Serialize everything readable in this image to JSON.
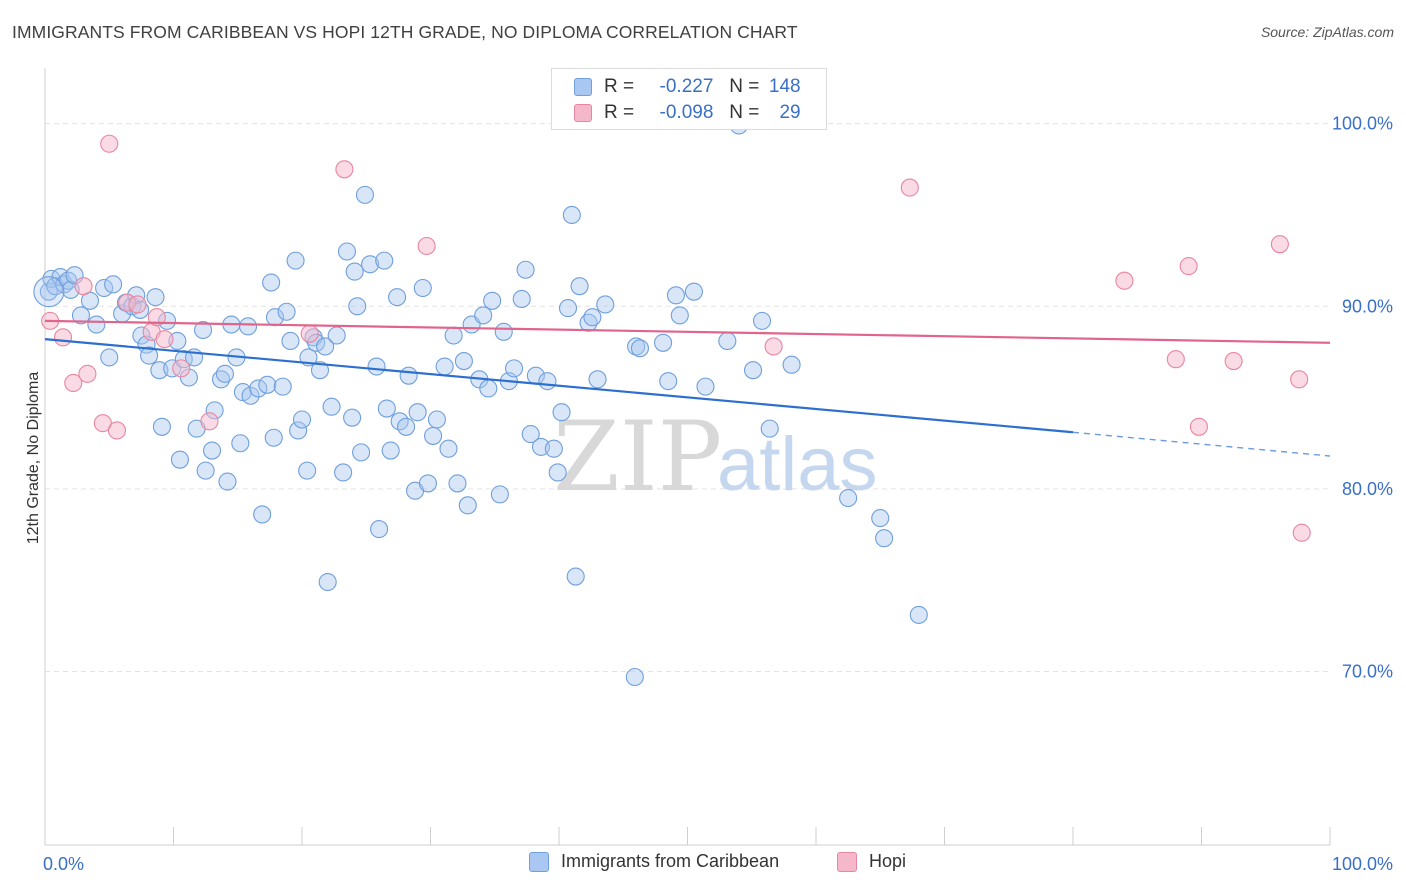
{
  "header": {
    "title": "IMMIGRANTS FROM CARIBBEAN VS HOPI 12TH GRADE, NO DIPLOMA CORRELATION CHART",
    "source": "Source: ZipAtlas.com"
  },
  "stats_legend": {
    "rows": [
      {
        "r_label": "R =",
        "r_value": "-0.227",
        "n_label": "N =",
        "n_value": "148",
        "color": "#a9c7f0"
      },
      {
        "r_label": "R =",
        "r_value": "-0.098",
        "n_label": "N =",
        "n_value": "29",
        "color": "#f5b8cb"
      }
    ]
  },
  "colors": {
    "blue_fill": "#a9c7f0",
    "blue_stroke": "#6f9fdc",
    "blue_line": "#2d6fcf",
    "pink_fill": "#f5b8cb",
    "pink_stroke": "#e8869f",
    "pink_line": "#e0648b",
    "tick_label": "#3a6fc6",
    "grid": "#e3e3e3"
  },
  "watermark": {
    "zip": "ZIP",
    "atlas": "atlas"
  },
  "chart_data": {
    "type": "scatter",
    "title": "IMMIGRANTS FROM CARIBBEAN VS HOPI 12TH GRADE, NO DIPLOMA CORRELATION CHART",
    "xlabel": "",
    "ylabel": "12th Grade, No Diploma",
    "xlim": [
      0,
      100
    ],
    "ylim": [
      60.5,
      102.5
    ],
    "x_tick_labels": [
      "0.0%",
      "100.0%"
    ],
    "y_ticks": [
      70,
      80,
      90,
      100
    ],
    "y_tick_labels": [
      "70.0%",
      "80.0%",
      "90.0%",
      "100.0%"
    ],
    "grid": true,
    "legend_position": "bottom-center",
    "series": [
      {
        "name": "Immigrants from Caribbean",
        "color": "#a9c7f0",
        "trend": {
          "x0": 0,
          "y0": 88.2,
          "x1": 80,
          "y1": 83.1,
          "dashed_to_x": 100,
          "dashed_to_y": 81.8
        },
        "points": [
          [
            0.3,
            90.8
          ],
          [
            0.5,
            91.5
          ],
          [
            0.8,
            91.1
          ],
          [
            1.2,
            91.6
          ],
          [
            1.5,
            91.2
          ],
          [
            1.8,
            91.4
          ],
          [
            2.0,
            90.9
          ],
          [
            2.3,
            91.7
          ],
          [
            2.8,
            89.5
          ],
          [
            3.5,
            90.3
          ],
          [
            4.0,
            89.0
          ],
          [
            4.6,
            91.0
          ],
          [
            5.0,
            87.2
          ],
          [
            5.3,
            91.2
          ],
          [
            6.0,
            89.6
          ],
          [
            6.3,
            90.2
          ],
          [
            6.8,
            90.0
          ],
          [
            7.1,
            90.6
          ],
          [
            7.4,
            89.8
          ],
          [
            7.5,
            88.4
          ],
          [
            7.9,
            87.9
          ],
          [
            8.1,
            87.3
          ],
          [
            8.6,
            90.5
          ],
          [
            8.9,
            86.5
          ],
          [
            9.1,
            83.4
          ],
          [
            9.5,
            89.2
          ],
          [
            9.9,
            86.6
          ],
          [
            10.3,
            88.1
          ],
          [
            10.5,
            81.6
          ],
          [
            10.8,
            87.1
          ],
          [
            11.2,
            86.1
          ],
          [
            11.6,
            87.2
          ],
          [
            11.8,
            83.3
          ],
          [
            12.3,
            88.7
          ],
          [
            12.5,
            81.0
          ],
          [
            13.0,
            82.1
          ],
          [
            13.2,
            84.3
          ],
          [
            13.7,
            86.0
          ],
          [
            14.0,
            86.3
          ],
          [
            14.2,
            80.4
          ],
          [
            14.5,
            89.0
          ],
          [
            14.9,
            87.2
          ],
          [
            15.2,
            82.5
          ],
          [
            15.4,
            85.3
          ],
          [
            15.8,
            88.9
          ],
          [
            16.0,
            85.1
          ],
          [
            16.6,
            85.5
          ],
          [
            16.9,
            78.6
          ],
          [
            17.3,
            85.7
          ],
          [
            17.6,
            91.3
          ],
          [
            17.8,
            82.8
          ],
          [
            17.9,
            89.4
          ],
          [
            18.5,
            85.6
          ],
          [
            18.8,
            89.7
          ],
          [
            19.1,
            88.1
          ],
          [
            19.5,
            92.5
          ],
          [
            19.7,
            83.2
          ],
          [
            20.0,
            83.8
          ],
          [
            20.4,
            81.0
          ],
          [
            20.5,
            87.2
          ],
          [
            20.9,
            88.3
          ],
          [
            21.1,
            88.0
          ],
          [
            21.4,
            86.5
          ],
          [
            21.8,
            87.8
          ],
          [
            22.0,
            74.9
          ],
          [
            22.3,
            84.5
          ],
          [
            22.7,
            88.4
          ],
          [
            23.2,
            80.9
          ],
          [
            23.5,
            93.0
          ],
          [
            23.9,
            83.9
          ],
          [
            24.1,
            91.9
          ],
          [
            24.3,
            90.0
          ],
          [
            24.6,
            82.0
          ],
          [
            24.9,
            96.1
          ],
          [
            25.3,
            92.3
          ],
          [
            25.8,
            86.7
          ],
          [
            26.0,
            77.8
          ],
          [
            26.4,
            92.5
          ],
          [
            26.6,
            84.4
          ],
          [
            26.9,
            82.1
          ],
          [
            27.4,
            90.5
          ],
          [
            27.6,
            83.7
          ],
          [
            28.1,
            83.4
          ],
          [
            28.3,
            86.2
          ],
          [
            28.8,
            79.9
          ],
          [
            29.0,
            84.2
          ],
          [
            29.4,
            91.0
          ],
          [
            29.8,
            80.3
          ],
          [
            30.2,
            82.9
          ],
          [
            30.5,
            83.8
          ],
          [
            31.1,
            86.7
          ],
          [
            31.4,
            82.2
          ],
          [
            31.8,
            88.4
          ],
          [
            32.1,
            80.3
          ],
          [
            32.6,
            87.0
          ],
          [
            32.9,
            79.1
          ],
          [
            33.2,
            89.0
          ],
          [
            33.8,
            86.0
          ],
          [
            34.1,
            89.5
          ],
          [
            34.5,
            85.5
          ],
          [
            34.8,
            90.3
          ],
          [
            35.4,
            79.7
          ],
          [
            35.7,
            88.6
          ],
          [
            36.1,
            85.9
          ],
          [
            36.5,
            86.6
          ],
          [
            37.1,
            90.4
          ],
          [
            37.4,
            92.0
          ],
          [
            37.8,
            83.0
          ],
          [
            38.2,
            86.2
          ],
          [
            38.6,
            82.3
          ],
          [
            39.1,
            85.9
          ],
          [
            39.6,
            82.2
          ],
          [
            39.9,
            80.9
          ],
          [
            40.2,
            84.2
          ],
          [
            40.7,
            89.9
          ],
          [
            41.0,
            95.0
          ],
          [
            41.3,
            75.2
          ],
          [
            41.6,
            91.1
          ],
          [
            42.3,
            89.1
          ],
          [
            42.6,
            89.4
          ],
          [
            43.0,
            86.0
          ],
          [
            43.6,
            90.1
          ],
          [
            45.9,
            69.7
          ],
          [
            46.0,
            87.8
          ],
          [
            46.3,
            87.7
          ],
          [
            48.1,
            88.0
          ],
          [
            48.5,
            85.9
          ],
          [
            49.1,
            90.6
          ],
          [
            49.4,
            89.5
          ],
          [
            50.5,
            90.8
          ],
          [
            51.4,
            85.6
          ],
          [
            53.1,
            88.1
          ],
          [
            54.0,
            99.9
          ],
          [
            55.1,
            86.5
          ],
          [
            55.8,
            89.2
          ],
          [
            56.4,
            83.3
          ],
          [
            58.1,
            86.8
          ],
          [
            62.5,
            79.5
          ],
          [
            65.0,
            78.4
          ],
          [
            65.3,
            77.3
          ],
          [
            68.0,
            73.1
          ]
        ]
      },
      {
        "name": "Hopi",
        "color": "#f5b8cb",
        "trend": {
          "x0": 0,
          "y0": 89.2,
          "x1": 100,
          "y1": 88.0
        },
        "points": [
          [
            0.4,
            89.2
          ],
          [
            1.4,
            88.3
          ],
          [
            2.2,
            85.8
          ],
          [
            3.0,
            91.1
          ],
          [
            3.3,
            86.3
          ],
          [
            4.5,
            83.6
          ],
          [
            5.0,
            98.9
          ],
          [
            5.6,
            83.2
          ],
          [
            6.4,
            90.2
          ],
          [
            7.2,
            90.1
          ],
          [
            8.3,
            88.6
          ],
          [
            8.7,
            89.4
          ],
          [
            9.3,
            88.2
          ],
          [
            10.6,
            86.6
          ],
          [
            12.8,
            83.7
          ],
          [
            20.6,
            88.5
          ],
          [
            23.3,
            97.5
          ],
          [
            29.7,
            93.3
          ],
          [
            56.7,
            87.8
          ],
          [
            67.3,
            96.5
          ],
          [
            84.0,
            91.4
          ],
          [
            88.0,
            87.1
          ],
          [
            89.0,
            92.2
          ],
          [
            89.8,
            83.4
          ],
          [
            92.5,
            87.0
          ],
          [
            96.1,
            93.4
          ],
          [
            97.6,
            86.0
          ],
          [
            97.8,
            77.6
          ]
        ]
      }
    ]
  },
  "legend_bottom": {
    "items": [
      {
        "label": "Immigrants from Caribbean",
        "color": "#a9c7f0"
      },
      {
        "label": "Hopi",
        "color": "#f5b8cb"
      }
    ]
  }
}
